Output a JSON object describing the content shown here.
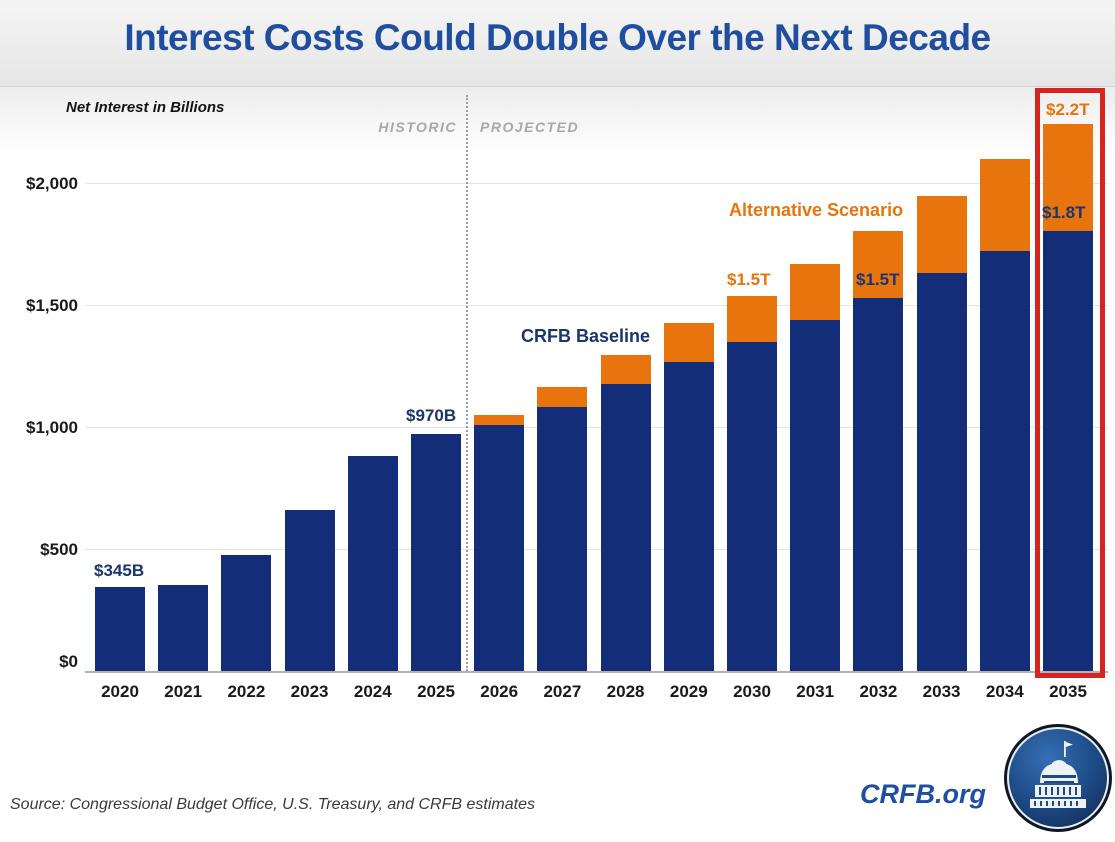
{
  "header": {
    "title": "Interest Costs Could Double Over the Next Decade"
  },
  "chart_data": {
    "type": "bar",
    "stacked": true,
    "title": "Interest Costs Could Double Over the Next Decade",
    "ylabel": "Net Interest in Billions",
    "xlabel": "",
    "ylim": [
      0,
      2300
    ],
    "grid": true,
    "yticks": [
      "$0",
      "$500",
      "$1,000",
      "$1,500",
      "$2,000"
    ],
    "categories": [
      "2020",
      "2021",
      "2022",
      "2023",
      "2024",
      "2025",
      "2026",
      "2027",
      "2028",
      "2029",
      "2030",
      "2031",
      "2032",
      "2033",
      "2034",
      "2035"
    ],
    "series": [
      {
        "name": "CRFB Baseline",
        "color": "#132d78",
        "values": [
          345,
          352,
          475,
          659,
          881,
          970,
          1010,
          1080,
          1175,
          1265,
          1350,
          1440,
          1530,
          1630,
          1720,
          1805
        ]
      },
      {
        "name": "Alternative Scenario (total)",
        "color": "#e8740d",
        "values": [
          null,
          null,
          null,
          null,
          null,
          null,
          1050,
          1165,
          1295,
          1425,
          1535,
          1670,
          1805,
          1945,
          2100,
          2240
        ]
      }
    ],
    "divider": {
      "between": [
        "2025",
        "2026"
      ]
    },
    "highlighted_category": "2035"
  },
  "annotations": {
    "historic": "HISTORIC",
    "projected": "PROJECTED",
    "crfb_baseline": "CRFB Baseline",
    "alternative_scenario": "Alternative Scenario",
    "label_2020": "$345B",
    "label_2025": "$970B",
    "label_2030": "$1.5T",
    "label_2032": "$1.5T",
    "label_2035_baseline": "$1.8T",
    "label_2035_alternative": "$2.2T"
  },
  "colors": {
    "baseline_navy": "#132d78",
    "alternative_orange": "#e8740d",
    "title_blue": "#1f4e9f",
    "highlight_red": "#d62420"
  },
  "footer": {
    "source": "Source: Congressional Budget Office, U.S. Treasury, and CRFB estimates",
    "site": "CRFB.org"
  }
}
